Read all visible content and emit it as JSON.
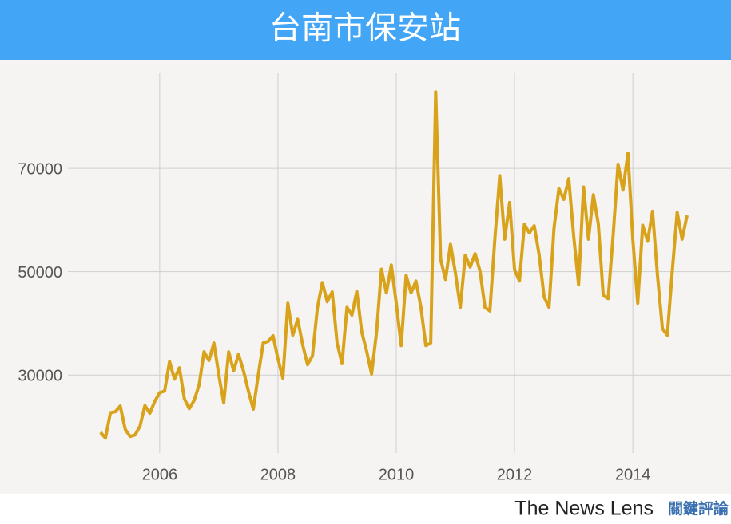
{
  "chart_data": {
    "type": "line",
    "title": "台南市保安站",
    "color": "#d9a21b",
    "grid": true,
    "xlim": [
      2003.3,
      2015.66
    ],
    "xticks": [
      2006,
      2008,
      2010,
      2012,
      2014
    ],
    "ylim": [
      14900,
      88400
    ],
    "yticks": [
      30000,
      50000,
      70000
    ],
    "x": [
      2005,
      2005.083,
      2005.167,
      2005.25,
      2005.333,
      2005.417,
      2005.5,
      2005.583,
      2005.667,
      2005.75,
      2005.833,
      2005.917,
      2006,
      2006.083,
      2006.167,
      2006.25,
      2006.333,
      2006.417,
      2006.5,
      2006.583,
      2006.667,
      2006.75,
      2006.833,
      2006.917,
      2007,
      2007.083,
      2007.167,
      2007.25,
      2007.333,
      2007.417,
      2007.5,
      2007.583,
      2007.667,
      2007.75,
      2007.833,
      2007.917,
      2008,
      2008.083,
      2008.167,
      2008.25,
      2008.333,
      2008.417,
      2008.5,
      2008.583,
      2008.667,
      2008.75,
      2008.833,
      2008.917,
      2009,
      2009.083,
      2009.167,
      2009.25,
      2009.333,
      2009.417,
      2009.5,
      2009.583,
      2009.667,
      2009.75,
      2009.833,
      2009.917,
      2010,
      2010.083,
      2010.167,
      2010.25,
      2010.333,
      2010.417,
      2010.5,
      2010.583,
      2010.667,
      2010.75,
      2010.833,
      2010.917,
      2011,
      2011.083,
      2011.167,
      2011.25,
      2011.333,
      2011.417,
      2011.5,
      2011.583,
      2011.667,
      2011.75,
      2011.833,
      2011.917,
      2012,
      2012.083,
      2012.167,
      2012.25,
      2012.333,
      2012.417,
      2012.5,
      2012.583,
      2012.667,
      2012.75,
      2012.833,
      2012.917,
      2013,
      2013.083,
      2013.167,
      2013.25,
      2013.333,
      2013.417,
      2013.5,
      2013.583,
      2013.667,
      2013.75,
      2013.833,
      2013.917,
      2014,
      2014.083,
      2014.167,
      2014.25,
      2014.333,
      2014.417,
      2014.5,
      2014.583,
      2014.667,
      2014.75,
      2014.833,
      2014.917
    ],
    "values": [
      18900,
      17800,
      22700,
      22900,
      24000,
      19500,
      18100,
      18400,
      20100,
      24100,
      22600,
      24900,
      26600,
      26900,
      32600,
      29200,
      31400,
      25400,
      23500,
      25100,
      28100,
      34500,
      32800,
      36200,
      30000,
      24600,
      34500,
      30800,
      34000,
      30800,
      26900,
      23400,
      30000,
      36200,
      36500,
      37600,
      33100,
      29400,
      43900,
      37700,
      40800,
      35900,
      32000,
      33700,
      43000,
      47900,
      44200,
      46100,
      36200,
      32200,
      43100,
      41600,
      46200,
      38300,
      34600,
      30200,
      38300,
      50500,
      45900,
      51300,
      43900,
      35700,
      49300,
      45900,
      48200,
      43100,
      35700,
      36200,
      84800,
      52400,
      48500,
      55300,
      49800,
      43100,
      53200,
      50900,
      53500,
      50100,
      43100,
      42400,
      56300,
      68600,
      56300,
      63400,
      50400,
      48200,
      59200,
      57500,
      58900,
      53200,
      45100,
      43100,
      58400,
      66100,
      64000,
      68000,
      56900,
      47500,
      66400,
      56300,
      64900,
      59200,
      45400,
      44800,
      57000,
      70800,
      65800,
      72900,
      56300,
      43900,
      59000,
      55900,
      61700,
      49300,
      39000,
      37700,
      50100,
      61500,
      56300,
      60900
    ]
  },
  "footer": {
    "brand": "The News Lens",
    "brand_zh": "關鍵評論"
  }
}
